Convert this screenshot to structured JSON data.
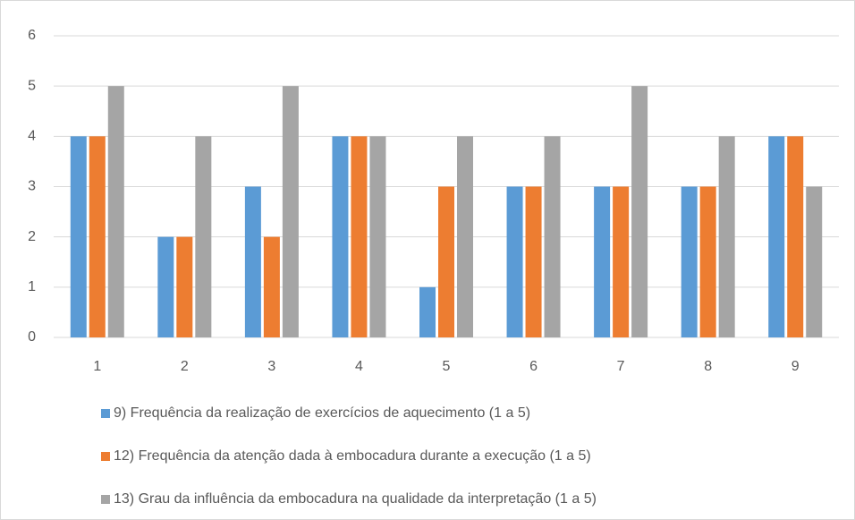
{
  "chart_data": {
    "type": "bar",
    "categories": [
      "1",
      "2",
      "3",
      "4",
      "5",
      "6",
      "7",
      "8",
      "9"
    ],
    "series": [
      {
        "name": "9) Frequência da realização de exercícios de aquecimento (1 a 5)",
        "color": "#5b9bd5",
        "values": [
          4,
          2,
          3,
          4,
          1,
          3,
          3,
          3,
          4
        ]
      },
      {
        "name": "12) Frequência da atenção dada à embocadura durante a execução (1 a 5)",
        "color": "#ed7d31",
        "values": [
          4,
          2,
          2,
          4,
          3,
          3,
          3,
          3,
          4
        ]
      },
      {
        "name": "13) Grau da influência da embocadura na qualidade da interpretação (1 a 5)",
        "color": "#a5a5a5",
        "values": [
          5,
          4,
          5,
          4,
          4,
          4,
          5,
          4,
          3
        ]
      }
    ],
    "ylim": [
      0,
      6
    ],
    "yticks": [
      0,
      1,
      2,
      3,
      4,
      5,
      6
    ],
    "grid": true,
    "legend": "bottom"
  }
}
